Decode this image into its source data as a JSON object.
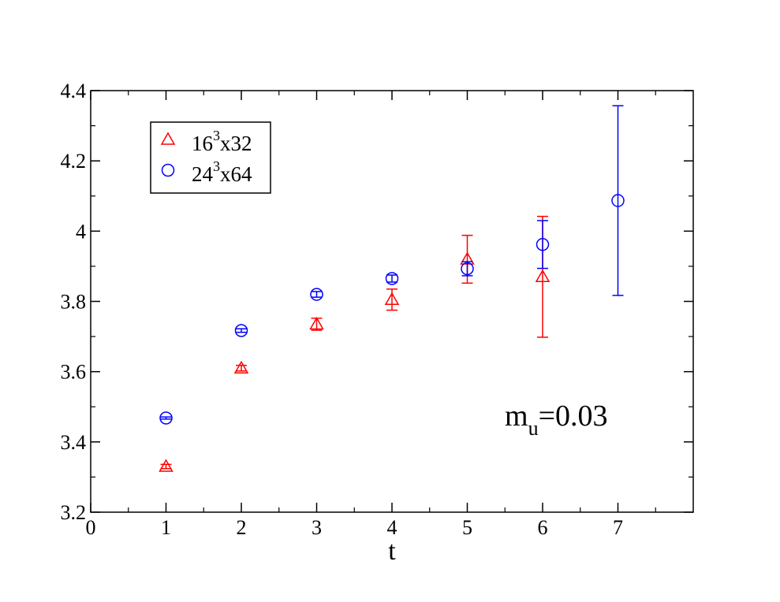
{
  "chart_data": {
    "type": "scatter",
    "title": "",
    "xlabel": "t",
    "ylabel": "",
    "xlim": [
      0,
      8
    ],
    "ylim": [
      3.2,
      4.4
    ],
    "x_ticks": [
      0,
      1,
      2,
      3,
      4,
      5,
      6,
      7
    ],
    "y_ticks": [
      3.2,
      3.4,
      3.6,
      3.8,
      4.0,
      4.2,
      4.4
    ],
    "x_tick_labels": [
      "0",
      "1",
      "2",
      "3",
      "4",
      "5",
      "6",
      "7"
    ],
    "y_tick_labels": [
      "3.2",
      "3.4",
      "3.6",
      "3.8",
      "4",
      "4.2",
      "4.4"
    ],
    "grid": false,
    "legend": {
      "position": "top-left"
    },
    "annotation": {
      "base": "m",
      "sub": "u",
      "rest": "=0.03"
    },
    "series": [
      {
        "legend_base": "16",
        "legend_sup": "3",
        "legend_rest": "x32",
        "marker": "triangle",
        "color": "#ff0000",
        "points": [
          {
            "x": 1,
            "y": 3.33,
            "err": 0.006
          },
          {
            "x": 2,
            "y": 3.61,
            "err": 0.008
          },
          {
            "x": 3,
            "y": 3.735,
            "err": 0.017
          },
          {
            "x": 4,
            "y": 3.805,
            "err": 0.03
          },
          {
            "x": 5,
            "y": 3.92,
            "err": 0.068
          },
          {
            "x": 6,
            "y": 3.87,
            "err": 0.172
          }
        ]
      },
      {
        "legend_base": "24",
        "legend_sup": "3",
        "legend_rest": "x64",
        "marker": "circle",
        "color": "#0000ff",
        "points": [
          {
            "x": 1,
            "y": 3.468,
            "err": 0.003
          },
          {
            "x": 2,
            "y": 3.717,
            "err": 0.005
          },
          {
            "x": 3,
            "y": 3.82,
            "err": 0.008
          },
          {
            "x": 4,
            "y": 3.865,
            "err": 0.01
          },
          {
            "x": 5,
            "y": 3.893,
            "err": 0.02
          },
          {
            "x": 6,
            "y": 3.962,
            "err": 0.068
          },
          {
            "x": 7,
            "y": 4.087,
            "err": 0.27
          }
        ]
      }
    ]
  }
}
